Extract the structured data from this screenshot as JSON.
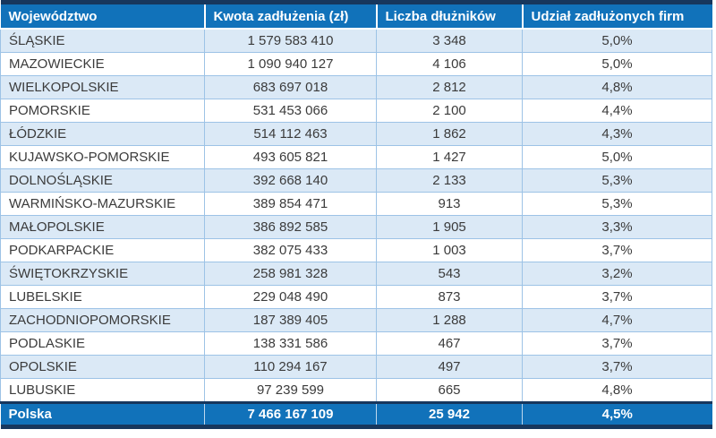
{
  "table": {
    "columns": [
      "Województwo",
      "Kwota zadłużenia (zł)",
      "Liczba dłużników",
      "Udział zadłużonych firm"
    ],
    "rows": [
      {
        "region": "ŚLĄSKIE",
        "debt": "1 579 583 410",
        "debtors": "3 348",
        "share": "5,0%"
      },
      {
        "region": "MAZOWIECKIE",
        "debt": "1 090 940 127",
        "debtors": "4 106",
        "share": "5,0%"
      },
      {
        "region": "WIELKOPOLSKIE",
        "debt": "683 697 018",
        "debtors": "2 812",
        "share": "4,8%"
      },
      {
        "region": "POMORSKIE",
        "debt": "531 453 066",
        "debtors": "2 100",
        "share": "4,4%"
      },
      {
        "region": "ŁÓDZKIE",
        "debt": "514 112 463",
        "debtors": "1 862",
        "share": "4,3%"
      },
      {
        "region": "KUJAWSKO-POMORSKIE",
        "debt": "493 605 821",
        "debtors": "1 427",
        "share": "5,0%"
      },
      {
        "region": "DOLNOŚLĄSKIE",
        "debt": "392 668 140",
        "debtors": "2 133",
        "share": "5,3%"
      },
      {
        "region": "WARMIŃSKO-MAZURSKIE",
        "debt": "389 854 471",
        "debtors": "913",
        "share": "5,3%"
      },
      {
        "region": "MAŁOPOLSKIE",
        "debt": "386 892 585",
        "debtors": "1 905",
        "share": "3,3%"
      },
      {
        "region": "PODKARPACKIE",
        "debt": "382 075 433",
        "debtors": "1 003",
        "share": "3,7%"
      },
      {
        "region": "ŚWIĘTOKRZYSKIE",
        "debt": "258 981 328",
        "debtors": "543",
        "share": "3,2%"
      },
      {
        "region": "LUBELSKIE",
        "debt": "229 048 490",
        "debtors": "873",
        "share": "3,7%"
      },
      {
        "region": "ZACHODNIOPOMORSKIE",
        "debt": "187 389 405",
        "debtors": "1 288",
        "share": "4,7%"
      },
      {
        "region": "PODLASKIE",
        "debt": "138 331 586",
        "debtors": "467",
        "share": "3,7%"
      },
      {
        "region": "OPOLSKIE",
        "debt": "110 294 167",
        "debtors": "497",
        "share": "3,7%"
      },
      {
        "region": "LUBUSKIE",
        "debt": "97 239 599",
        "debtors": "665",
        "share": "4,8%"
      }
    ],
    "total": {
      "region": "Polska",
      "debt": "7 466 167 109",
      "debtors": "25 942",
      "share": "4,5%"
    }
  },
  "colors": {
    "header_bg": "#1172BA",
    "dark_border": "#17375D",
    "row_alt_bg": "#DBE9F6",
    "row_border": "#9DC3E6",
    "body_text": "#3B3B3B",
    "header_text": "#FFFFFF"
  },
  "chart_data": {
    "type": "table",
    "columns": [
      "Województwo",
      "Kwota zadłużenia (zł)",
      "Liczba dłużników",
      "Udział zadłużonych firm"
    ],
    "categories": [
      "ŚLĄSKIE",
      "MAZOWIECKIE",
      "WIELKOPOLSKIE",
      "POMORSKIE",
      "ŁÓDZKIE",
      "KUJAWSKO-POMORSKIE",
      "DOLNOŚLĄSKIE",
      "WARMIŃSKO-MAZURSKIE",
      "MAŁOPOLSKIE",
      "PODKARPACKIE",
      "ŚWIĘTOKRZYSKIE",
      "LUBELSKIE",
      "ZACHODNIOPOMORSKIE",
      "PODLASKIE",
      "OPOLSKIE",
      "LUBUSKIE"
    ],
    "series": [
      {
        "name": "Kwota zadłużenia (zł)",
        "values": [
          1579583410,
          1090940127,
          683697018,
          531453066,
          514112463,
          493605821,
          392668140,
          389854471,
          386892585,
          382075433,
          258981328,
          229048490,
          187389405,
          138331586,
          110294167,
          97239599
        ]
      },
      {
        "name": "Liczba dłużników",
        "values": [
          3348,
          4106,
          2812,
          2100,
          1862,
          1427,
          2133,
          913,
          1905,
          1003,
          543,
          873,
          1288,
          467,
          497,
          665
        ]
      },
      {
        "name": "Udział zadłużonych firm (%)",
        "values": [
          5.0,
          5.0,
          4.8,
          4.4,
          4.3,
          5.0,
          5.3,
          5.3,
          3.3,
          3.7,
          3.2,
          3.7,
          4.7,
          3.7,
          3.7,
          4.8
        ]
      }
    ],
    "totals": {
      "label": "Polska",
      "kwota_zadluzenia": 7466167109,
      "liczba_dluznikow": 25942,
      "udzial_zadluzonych_firm_pct": 4.5
    }
  }
}
